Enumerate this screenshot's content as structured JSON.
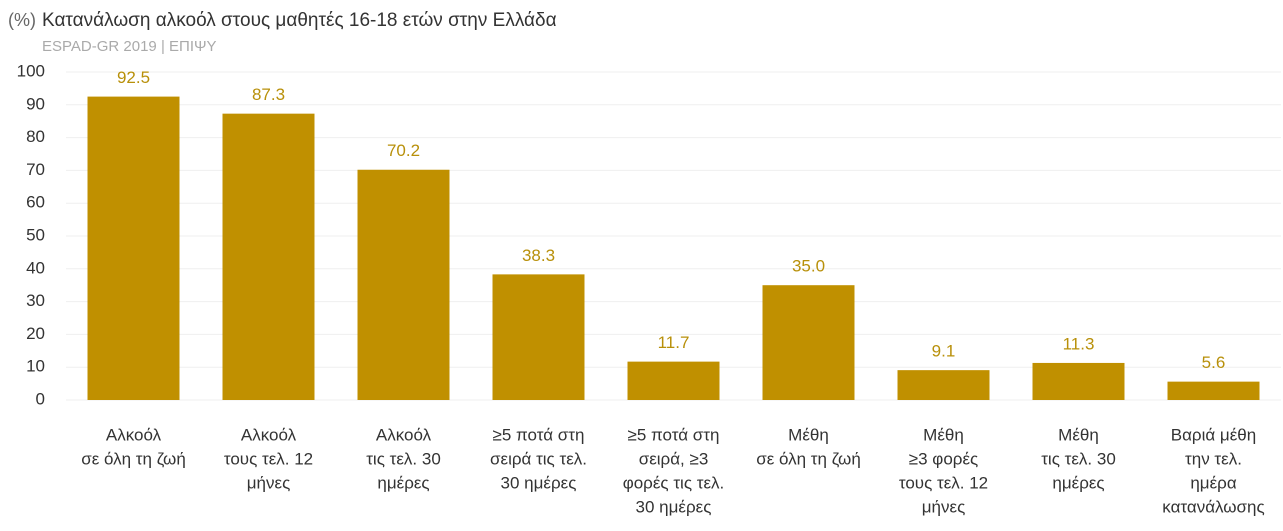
{
  "chart_data": {
    "type": "bar",
    "title": "Κατανάλωση αλκοόλ στους μαθητές 16-18 ετών στην Ελλάδα",
    "subtitle": "ESPAD-GR 2019 | ΕΠΙΨΥ",
    "y_label": "(%)",
    "categories": [
      [
        "Αλκοόλ",
        "σε όλη τη ζωή"
      ],
      [
        "Αλκοόλ",
        "τους τελ. 12",
        "μήνες"
      ],
      [
        "Αλκοόλ",
        "τις τελ. 30",
        "ημέρες"
      ],
      [
        "≥5 ποτά στη",
        "σειρά τις τελ.",
        "30 ημέρες"
      ],
      [
        "≥5 ποτά στη",
        "σειρά, ≥3",
        "φορές τις τελ.",
        "30 ημέρες"
      ],
      [
        "Μέθη",
        "σε όλη τη ζωή"
      ],
      [
        "Μέθη",
        "≥3 φορές",
        "τους τελ. 12",
        "μήνες"
      ],
      [
        "Μέθη",
        "τις τελ. 30",
        "ημέρες"
      ],
      [
        "Βαριά μέθη",
        "την τελ.",
        "ημέρα",
        "κατανάλωσης"
      ]
    ],
    "values": [
      92.5,
      87.3,
      70.2,
      38.3,
      11.7,
      35.0,
      9.1,
      11.3,
      5.6
    ],
    "value_labels": [
      "92.5",
      "87.3",
      "70.2",
      "38.3",
      "11.7",
      "35.0",
      "9.1",
      "11.3",
      "5.6"
    ],
    "color": "#c09000",
    "ylim": [
      0,
      100
    ],
    "yticks": [
      0,
      10,
      20,
      30,
      40,
      50,
      60,
      70,
      80,
      90,
      100
    ],
    "grid": true
  }
}
